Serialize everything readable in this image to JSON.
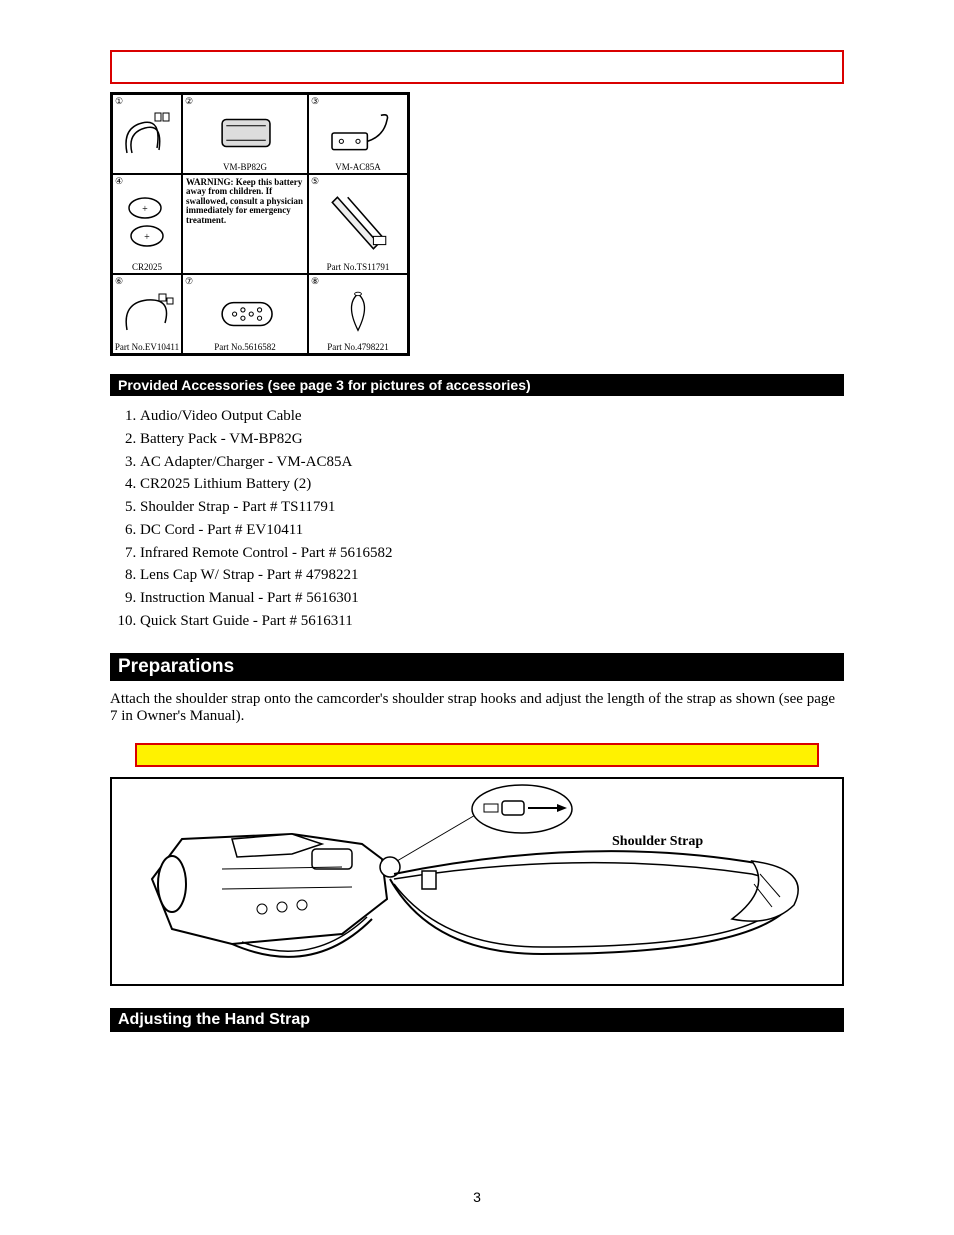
{
  "colors": {
    "red": "#d90000",
    "yellow": "#fff200",
    "black": "#000000",
    "white": "#ffffff"
  },
  "accessories_grid": {
    "warning": "WARNING: Keep this battery away from children. If swallowed, consult a physician immediately for emergency treatment.",
    "cells": {
      "c1": {
        "num": "①",
        "caption": ""
      },
      "c2": {
        "num": "②",
        "caption": "VM-BP82G"
      },
      "c3": {
        "num": "③",
        "caption": "VM-AC85A"
      },
      "c4": {
        "num": "④",
        "caption": "CR2025"
      },
      "c5": {
        "num": "⑤",
        "caption": "Part No.TS11791"
      },
      "c6": {
        "num": "⑥",
        "caption": "Part No.EV10411"
      },
      "c7": {
        "num": "⑦",
        "caption": "Part No.5616582"
      },
      "c8": {
        "num": "⑧",
        "caption": "Part No.4798221"
      }
    }
  },
  "headers": {
    "accessories": "Provided Accessories (see page 3 for pictures of accessories)",
    "preparations": "Preparations",
    "hand_strap": "Adjusting the Hand Strap"
  },
  "acc_list": [
    "Audio/Video Output Cable",
    "Battery Pack - VM-BP82G",
    "AC Adapter/Charger - VM-AC85A",
    "CR2025 Lithium Battery (2)",
    "Shoulder Strap - Part # TS11791",
    "DC Cord - Part # EV10411",
    "Infrared Remote Control - Part # 5616582",
    "Lens Cap W/ Strap - Part # 4798221",
    "Instruction Manual - Part # 5616301",
    "Quick Start Guide - Part # 5616311"
  ],
  "prep_body": "Attach the shoulder strap onto the camcorder's shoulder strap hooks and adjust the length of the strap as shown (see page 7 in Owner's Manual).",
  "strap_label": "Shoulder Strap",
  "page_number": "3"
}
